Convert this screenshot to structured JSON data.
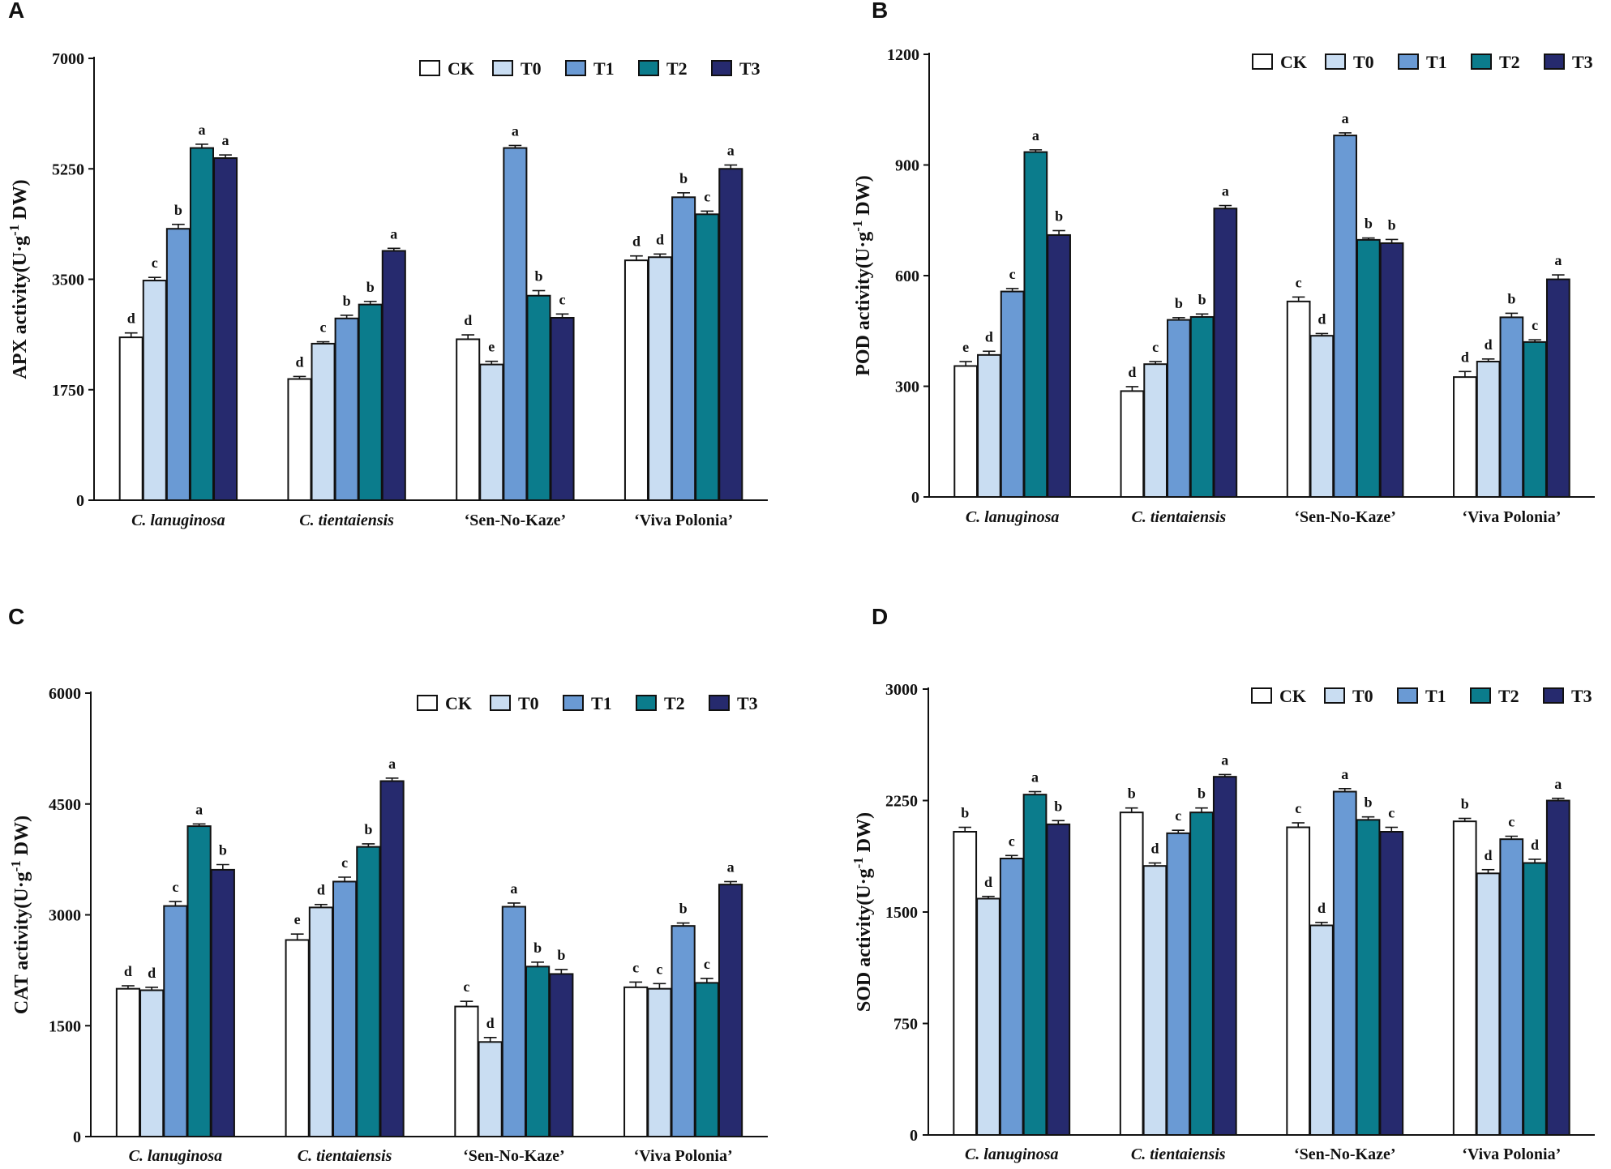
{
  "figure": {
    "treatments": [
      "CK",
      "T0",
      "T1",
      "T2",
      "T3"
    ],
    "colors": {
      "CK": "#ffffff",
      "T0": "#c9ddf2",
      "T1": "#6a9ad4",
      "T2": "#0b7c8c",
      "T3": "#262a6e"
    }
  },
  "chart_data": [
    {
      "panel": "A",
      "type": "bar",
      "ylabel": "APX activity(U·g-1 DW)",
      "ylabel_main": "APX activity(U·g",
      "ylabel_sup": "-1",
      "ylabel_tail": " DW)",
      "ylim": [
        0,
        7000
      ],
      "yticks": [
        0,
        1750,
        3500,
        5250,
        7000
      ],
      "categories": [
        "C.  lanuginosa",
        "C.  tientaiensis",
        "‘Sen-No-Kaze’",
        "‘Viva Polonia’"
      ],
      "italic_categories": [
        true,
        true,
        false,
        false
      ],
      "legend": [
        "CK",
        "T0",
        "T1",
        "T2",
        "T3"
      ],
      "series": [
        {
          "name": "CK",
          "values": [
            2580,
            1920,
            2550,
            3800
          ],
          "errors": [
            70,
            40,
            70,
            70
          ],
          "letters": [
            "d",
            "d",
            "d",
            "d"
          ]
        },
        {
          "name": "T0",
          "values": [
            3480,
            2480,
            2150,
            3850
          ],
          "errors": [
            50,
            30,
            50,
            50
          ],
          "letters": [
            "c",
            "c",
            "e",
            "d"
          ]
        },
        {
          "name": "T1",
          "values": [
            4300,
            2880,
            5580,
            4800
          ],
          "errors": [
            70,
            50,
            40,
            70
          ],
          "letters": [
            "b",
            "b",
            "a",
            "b"
          ]
        },
        {
          "name": "T2",
          "values": [
            5580,
            3100,
            3240,
            4530
          ],
          "errors": [
            60,
            50,
            80,
            50
          ],
          "letters": [
            "a",
            "b",
            "b",
            "c"
          ]
        },
        {
          "name": "T3",
          "values": [
            5420,
            3950,
            2890,
            5250
          ],
          "errors": [
            50,
            40,
            60,
            60
          ],
          "letters": [
            "a",
            "a",
            "c",
            "a"
          ]
        }
      ]
    },
    {
      "panel": "B",
      "type": "bar",
      "ylabel": "POD activity(U·g-1 DW)",
      "ylabel_main": "POD activity(U·g",
      "ylabel_sup": "-1",
      "ylabel_tail": " DW)",
      "ylim": [
        0,
        1200
      ],
      "yticks": [
        0,
        300,
        600,
        900,
        1200
      ],
      "categories": [
        "C.  lanuginosa",
        "C.  tientaiensis",
        "‘Sen-No-Kaze’",
        "‘Viva Polonia’"
      ],
      "italic_categories": [
        true,
        true,
        false,
        false
      ],
      "legend": [
        "CK",
        "T0",
        "T1",
        "T2",
        "T3"
      ],
      "series": [
        {
          "name": "CK",
          "values": [
            355,
            287,
            530,
            325
          ],
          "errors": [
            12,
            12,
            12,
            15
          ],
          "letters": [
            "e",
            "d",
            "c",
            "d"
          ]
        },
        {
          "name": "T0",
          "values": [
            385,
            360,
            437,
            367
          ],
          "errors": [
            10,
            7,
            6,
            7
          ],
          "letters": [
            "d",
            "c",
            "d",
            "d"
          ]
        },
        {
          "name": "T1",
          "values": [
            557,
            480,
            980,
            487
          ],
          "errors": [
            8,
            6,
            7,
            11
          ],
          "letters": [
            "c",
            "b",
            "a",
            "b"
          ]
        },
        {
          "name": "T2",
          "values": [
            935,
            488,
            697,
            420
          ],
          "errors": [
            6,
            8,
            5,
            6
          ],
          "letters": [
            "a",
            "b",
            "b",
            "c"
          ]
        },
        {
          "name": "T3",
          "values": [
            710,
            782,
            688,
            590
          ],
          "errors": [
            12,
            8,
            10,
            12
          ],
          "letters": [
            "b",
            "a",
            "b",
            "a"
          ]
        }
      ]
    },
    {
      "panel": "C",
      "type": "bar",
      "ylabel": "CAT activity(U·g-1 DW)",
      "ylabel_main": "CAT activity(U·g",
      "ylabel_sup": "-1",
      "ylabel_tail": " DW)",
      "ylim": [
        0,
        6000
      ],
      "yticks": [
        0,
        1500,
        3000,
        4500,
        6000
      ],
      "categories": [
        "C.  lanuginosa",
        "C.  tientaiensis",
        "‘Sen-No-Kaze’",
        "‘Viva Polonia’"
      ],
      "italic_categories": [
        true,
        true,
        false,
        false
      ],
      "legend": [
        "CK",
        "T0",
        "T1",
        "T2",
        "T3"
      ],
      "series": [
        {
          "name": "CK",
          "values": [
            2000,
            2660,
            1760,
            2020
          ],
          "errors": [
            40,
            80,
            70,
            70
          ],
          "letters": [
            "d",
            "e",
            "c",
            "c"
          ]
        },
        {
          "name": "T0",
          "values": [
            1980,
            3100,
            1280,
            2000
          ],
          "errors": [
            40,
            40,
            60,
            70
          ],
          "letters": [
            "d",
            "d",
            "d",
            "c"
          ]
        },
        {
          "name": "T1",
          "values": [
            3120,
            3450,
            3110,
            2850
          ],
          "errors": [
            60,
            60,
            50,
            40
          ],
          "letters": [
            "c",
            "c",
            "a",
            "b"
          ]
        },
        {
          "name": "T2",
          "values": [
            4200,
            3920,
            2300,
            2080
          ],
          "errors": [
            30,
            40,
            60,
            60
          ],
          "letters": [
            "a",
            "b",
            "b",
            "c"
          ]
        },
        {
          "name": "T3",
          "values": [
            3610,
            4810,
            2200,
            3410
          ],
          "errors": [
            70,
            40,
            60,
            40
          ],
          "letters": [
            "b",
            "a",
            "b",
            "a"
          ]
        }
      ]
    },
    {
      "panel": "D",
      "type": "bar",
      "ylabel": "SOD activity(U·g-1 DW)",
      "ylabel_main": "SOD activity(U·g",
      "ylabel_sup": "-1",
      "ylabel_tail": " DW)",
      "ylim": [
        0,
        3000
      ],
      "yticks": [
        0,
        750,
        1500,
        2250,
        3000
      ],
      "categories": [
        "C.  lanuginosa",
        "C.  tientaiensis",
        "‘Sen-No-Kaze’",
        "‘Viva Polonia’"
      ],
      "italic_categories": [
        true,
        true,
        false,
        false
      ],
      "legend": [
        "CK",
        "T0",
        "T1",
        "T2",
        "T3"
      ],
      "series": [
        {
          "name": "CK",
          "values": [
            2040,
            2170,
            2070,
            2110
          ],
          "errors": [
            30,
            30,
            30,
            20
          ],
          "letters": [
            "b",
            "b",
            "c",
            "b"
          ]
        },
        {
          "name": "T0",
          "values": [
            1590,
            1810,
            1410,
            1760
          ],
          "errors": [
            15,
            20,
            20,
            25
          ],
          "letters": [
            "d",
            "d",
            "d",
            "d"
          ]
        },
        {
          "name": "T1",
          "values": [
            1860,
            2030,
            2310,
            1990
          ],
          "errors": [
            20,
            20,
            20,
            20
          ],
          "letters": [
            "c",
            "c",
            "a",
            "c"
          ]
        },
        {
          "name": "T2",
          "values": [
            2290,
            2170,
            2120,
            1830
          ],
          "errors": [
            20,
            30,
            20,
            25
          ],
          "letters": [
            "a",
            "b",
            "b",
            "d"
          ]
        },
        {
          "name": "T3",
          "values": [
            2090,
            2410,
            2040,
            2250
          ],
          "errors": [
            25,
            15,
            30,
            15
          ],
          "letters": [
            "b",
            "a",
            "c",
            "a"
          ]
        }
      ]
    }
  ]
}
